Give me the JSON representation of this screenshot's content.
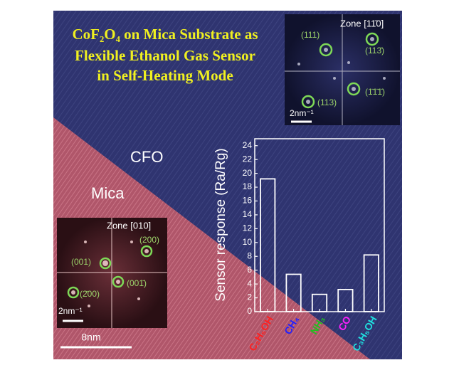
{
  "chart_data": {
    "type": "bar",
    "y_label": "Sensor response (Ra/Rg)",
    "categories": [
      "C₂H₅OH",
      "CH₄",
      "NH₃",
      "CO",
      "C₃H₅OH"
    ],
    "category_colors": [
      "#ff2020",
      "#2020ff",
      "#20c020",
      "#ff20ff",
      "#20e0e0"
    ],
    "values": [
      19.2,
      5.4,
      2.5,
      3.2,
      8.2
    ],
    "color": "#ffffff",
    "ylim": [
      0,
      25
    ],
    "yticks": [
      0,
      2,
      4,
      6,
      8,
      10,
      12,
      14,
      16,
      18,
      20,
      22,
      24
    ]
  },
  "figure": {
    "title_lines": [
      "CoF₂O₄ on Mica Substrate as",
      "Flexible Ethanol Gas Sensor",
      "in Self-Heating Mode"
    ],
    "region_labels": [
      "CFO",
      "Mica"
    ],
    "scale_bar": "8nm",
    "inset_top": {
      "zone": "Zone [11̄0]",
      "spots": [
        "(111)",
        "(113̄)",
        "(1̄1̄1̄)",
        "(113)"
      ],
      "scale": "2nm⁻¹"
    },
    "inset_bottom": {
      "zone": "Zone [010]",
      "spots": [
        "(200)",
        "(001)",
        "(001̄)",
        "(2̄00)"
      ],
      "scale": "2nm⁻¹"
    }
  }
}
